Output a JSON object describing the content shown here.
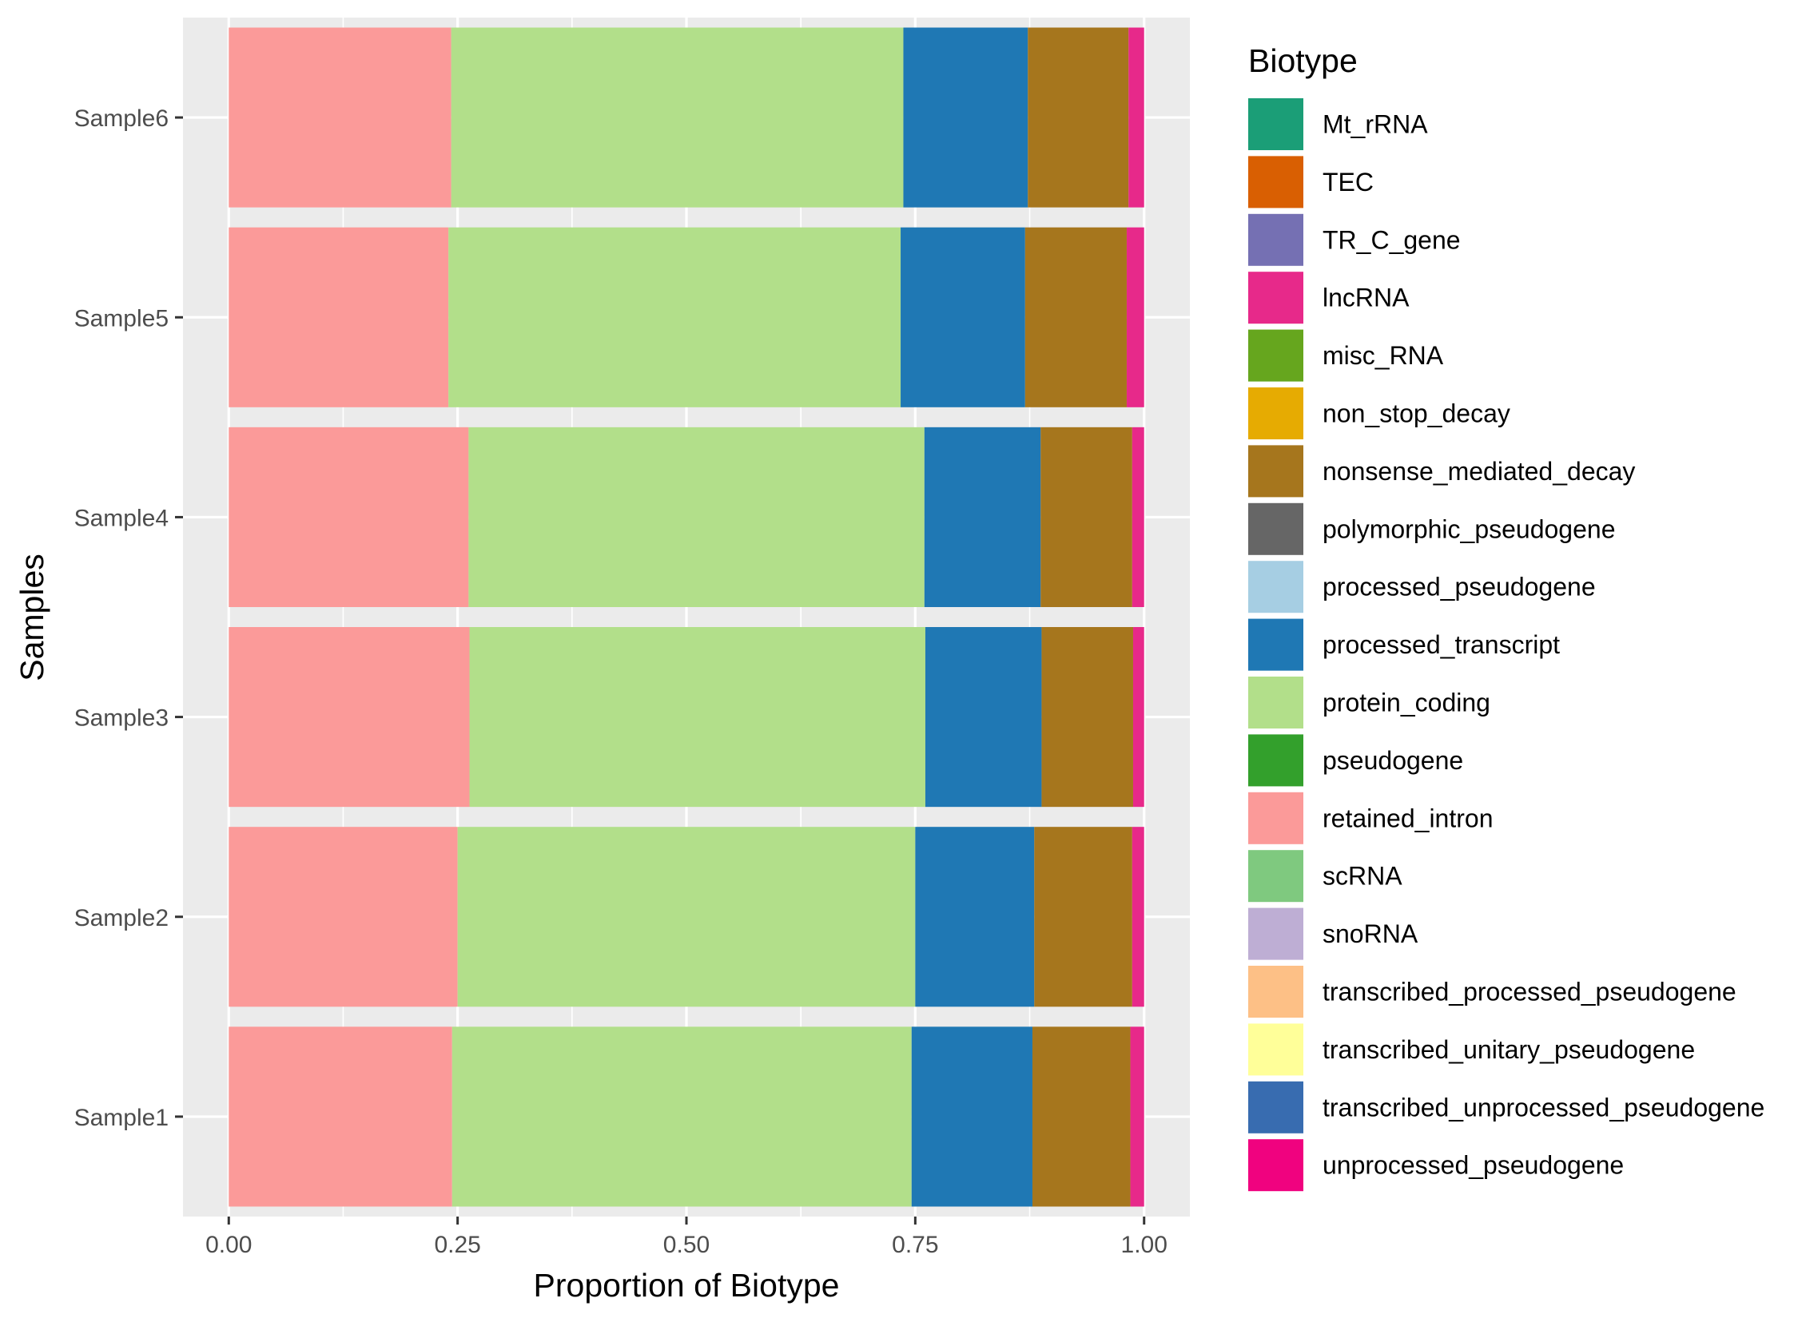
{
  "chart_data": {
    "type": "bar",
    "orientation": "horizontal",
    "stacked": true,
    "title": "",
    "xlabel": "Proportion of Biotype",
    "ylabel": "Samples",
    "xlim": [
      -0.05,
      1.05
    ],
    "xticks": [
      0.0,
      0.25,
      0.5,
      0.75,
      1.0
    ],
    "xtick_labels": [
      "0.00",
      "0.25",
      "0.50",
      "0.75",
      "1.00"
    ],
    "grid": true,
    "legend": {
      "title": "Biotype",
      "position": "right"
    },
    "categories": [
      "Sample6",
      "Sample5",
      "Sample4",
      "Sample3",
      "Sample2",
      "Sample1"
    ],
    "legend_entries": [
      {
        "name": "Mt_rRNA",
        "color": "#1B9E77"
      },
      {
        "name": "TEC",
        "color": "#D95F02"
      },
      {
        "name": "TR_C_gene",
        "color": "#7570B3"
      },
      {
        "name": "lncRNA",
        "color": "#E7298A"
      },
      {
        "name": "misc_RNA",
        "color": "#66A61E"
      },
      {
        "name": "non_stop_decay",
        "color": "#E6AB02"
      },
      {
        "name": "nonsense_mediated_decay",
        "color": "#A6761D"
      },
      {
        "name": "polymorphic_pseudogene",
        "color": "#666666"
      },
      {
        "name": "processed_pseudogene",
        "color": "#A6CEE3"
      },
      {
        "name": "processed_transcript",
        "color": "#1F78B4"
      },
      {
        "name": "protein_coding",
        "color": "#B2DF8A"
      },
      {
        "name": "pseudogene",
        "color": "#33A02C"
      },
      {
        "name": "retained_intron",
        "color": "#FB9A99"
      },
      {
        "name": "scRNA",
        "color": "#7FC97F"
      },
      {
        "name": "snoRNA",
        "color": "#BEAED4"
      },
      {
        "name": "transcribed_processed_pseudogene",
        "color": "#FDC086"
      },
      {
        "name": "transcribed_unitary_pseudogene",
        "color": "#FFFF99"
      },
      {
        "name": "transcribed_unprocessed_pseudogene",
        "color": "#386CB0"
      },
      {
        "name": "unprocessed_pseudogene",
        "color": "#F0027F"
      }
    ],
    "stack_order": [
      "retained_intron",
      "protein_coding",
      "processed_transcript",
      "nonsense_mediated_decay",
      "lncRNA"
    ],
    "series": [
      {
        "name": "retained_intron",
        "values": [
          0.243,
          0.24,
          0.262,
          0.263,
          0.25,
          0.244
        ]
      },
      {
        "name": "protein_coding",
        "values": [
          0.494,
          0.494,
          0.498,
          0.498,
          0.5,
          0.502
        ]
      },
      {
        "name": "processed_transcript",
        "values": [
          0.136,
          0.136,
          0.127,
          0.127,
          0.13,
          0.132
        ]
      },
      {
        "name": "nonsense_mediated_decay",
        "values": [
          0.11,
          0.111,
          0.1,
          0.1,
          0.107,
          0.107
        ]
      },
      {
        "name": "lncRNA",
        "values": [
          0.017,
          0.019,
          0.013,
          0.012,
          0.013,
          0.015
        ]
      }
    ]
  }
}
